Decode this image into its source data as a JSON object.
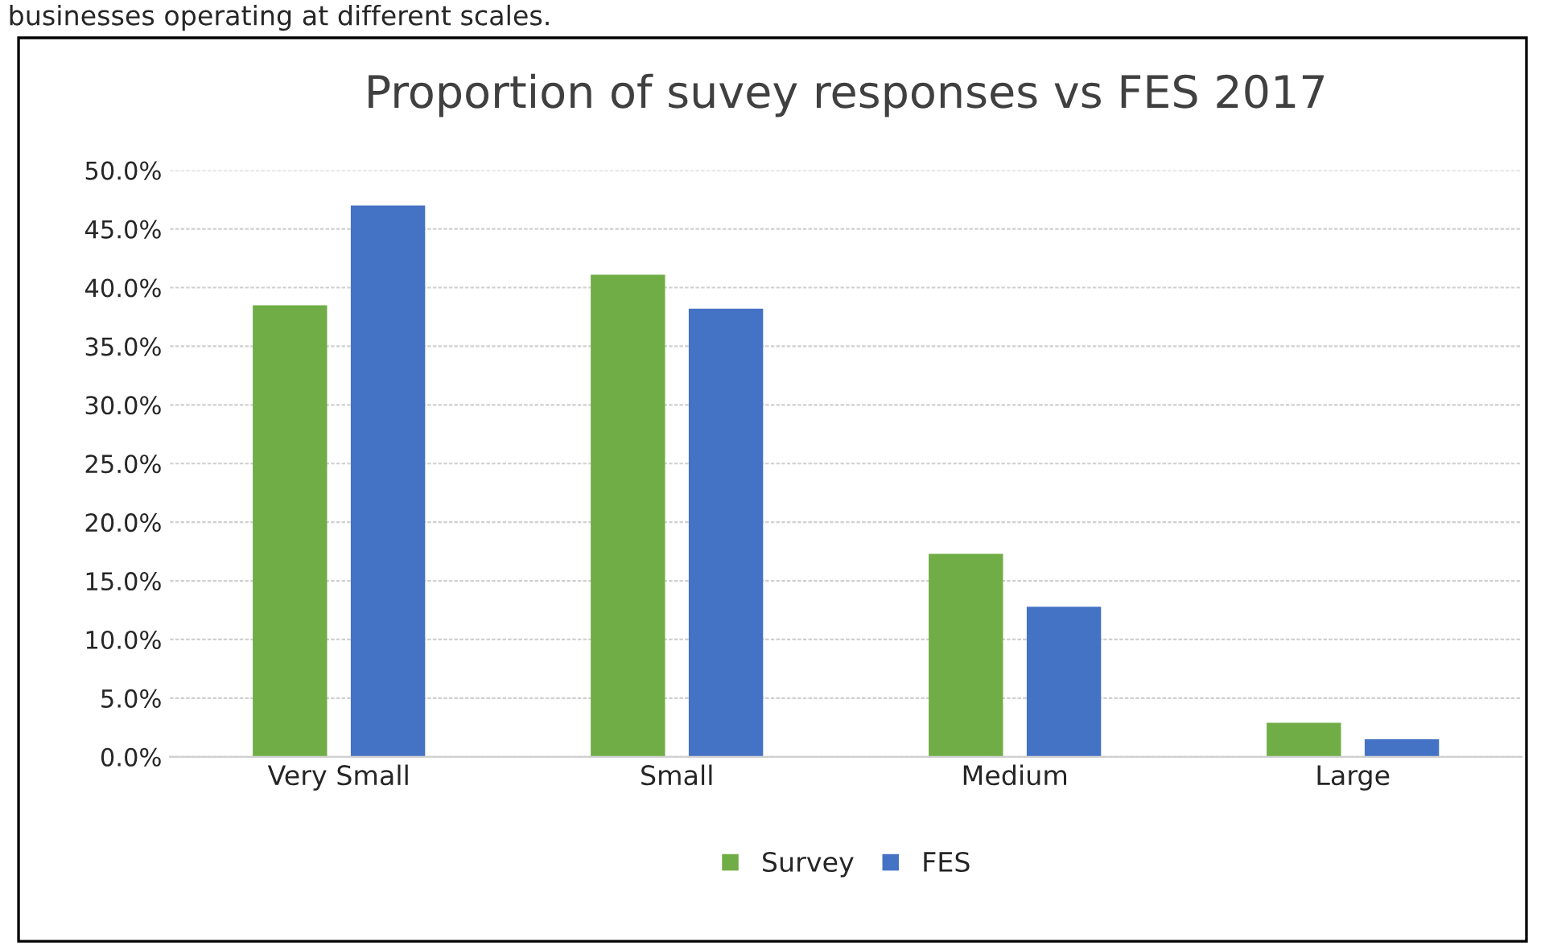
{
  "chart_data": {
    "type": "bar",
    "title": "Proportion of suvey responses vs FES 2017",
    "annotations": [
      "businesses operating at different scales."
    ],
    "categories": [
      "Very Small",
      "Small",
      "Medium",
      "Large"
    ],
    "series": [
      {
        "name": "Survey",
        "color": "#70ad47",
        "values": [
          38.5,
          41.1,
          17.3,
          2.9
        ]
      },
      {
        "name": "FES",
        "color": "#4472c4",
        "values": [
          47.0,
          38.2,
          12.8,
          1.5
        ]
      }
    ],
    "ylim": [
      0,
      50
    ],
    "yticks": [
      {
        "value": 0,
        "label": "0.0%"
      },
      {
        "value": 5,
        "label": "5.0%"
      },
      {
        "value": 10,
        "label": "10.0%"
      },
      {
        "value": 15,
        "label": "15.0%"
      },
      {
        "value": 20,
        "label": "20.0%"
      },
      {
        "value": 25,
        "label": "25.0%"
      },
      {
        "value": 30,
        "label": "30.0%"
      },
      {
        "value": 35,
        "label": "35.0%"
      },
      {
        "value": 40,
        "label": "40.0%"
      },
      {
        "value": 45,
        "label": "45.0%"
      },
      {
        "value": 50,
        "label": "50.0%"
      }
    ],
    "grid": "y",
    "legend": "bottom"
  }
}
